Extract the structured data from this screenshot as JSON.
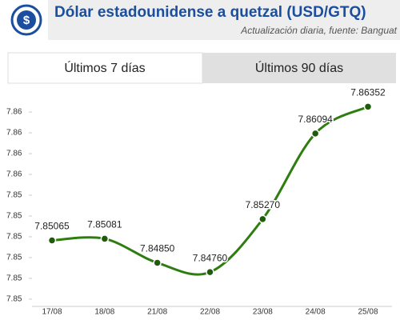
{
  "header": {
    "title": "Dólar estadounidense a quetzal (USD/GTQ)",
    "subtitle": "Actualización diaria, fuente: Banguat"
  },
  "tabs": [
    "Últimos 7 días",
    "Últimos 90 días"
  ],
  "chart_data": {
    "type": "line",
    "categories": [
      "17/08",
      "18/08",
      "21/08",
      "22/08",
      "23/08",
      "24/08",
      "25/08"
    ],
    "series": [
      {
        "name": "USD/GTQ",
        "color": "#2e7d0f",
        "values": [
          7.85065,
          7.85081,
          7.8485,
          7.8476,
          7.8527,
          7.86094,
          7.86352
        ],
        "value_labels": [
          "7.85065",
          "7.85081",
          "7.84850",
          "7.84760",
          "7.85270",
          "7.86094",
          "7.86352"
        ]
      }
    ],
    "ylim": [
      7.8443,
      7.8647
    ],
    "yticks": [
      {
        "value": 7.845,
        "label": "7.85"
      },
      {
        "value": 7.847,
        "label": "7.85"
      },
      {
        "value": 7.849,
        "label": "7.85"
      },
      {
        "value": 7.851,
        "label": "7.85"
      },
      {
        "value": 7.853,
        "label": "7.85"
      },
      {
        "value": 7.855,
        "label": "7.85"
      },
      {
        "value": 7.857,
        "label": "7.86"
      },
      {
        "value": 7.859,
        "label": "7.86"
      },
      {
        "value": 7.861,
        "label": "7.86"
      },
      {
        "value": 7.863,
        "label": "7.86"
      }
    ],
    "grid": false
  }
}
